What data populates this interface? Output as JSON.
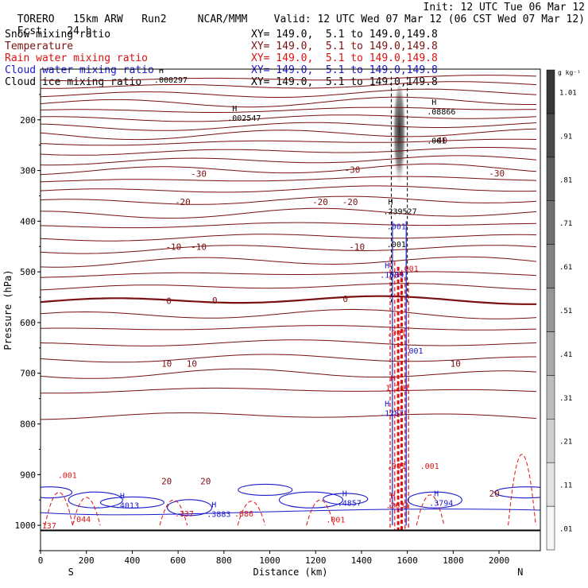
{
  "header": {
    "model": "TORERO",
    "resolution": "15km ARW",
    "run": "Run2",
    "center": "NCAR/MMM",
    "init": "Init: 12 UTC Tue 06 Mar 12",
    "fcst_label": "Fcst:",
    "fcst_hours": "24 h",
    "valid": "Valid: 12 UTC Wed 07 Mar 12 (06 CST Wed 07 Mar 12)"
  },
  "legend": [
    {
      "name": "Snow mixing ratio",
      "xy": "XY= 149.0,  5.1 to 149.0,149.8",
      "color": "#000000",
      "cls": "black"
    },
    {
      "name": "Temperature",
      "xy": "XY= 149.0,  5.1 to 149.0,149.8",
      "color": "#7a1010",
      "cls": "brown"
    },
    {
      "name": "Rain water mixing ratio",
      "xy": "XY= 149.0,  5.1 to 149.0,149.8",
      "color": "#dd1111",
      "cls": "red"
    },
    {
      "name": "Cloud water mixing ratio",
      "xy": "XY= 149.0,  5.1 to 149.0,149.8",
      "color": "#1a1acc",
      "cls": "blue"
    },
    {
      "name": "Cloud ice mixing ratio",
      "xy": "XY= 149.0,  5.1 to 149.0,149.8",
      "color": "#000000",
      "cls": "black"
    }
  ],
  "colorbar": {
    "unit": "g kg⁻¹",
    "labels": [
      ".01",
      ".11",
      ".21",
      ".31",
      ".41",
      ".51",
      ".61",
      ".71",
      ".81",
      ".91",
      "1.01"
    ]
  },
  "chart_data": {
    "type": "cross-section contour",
    "title": "Vertical cross section along XY= 149.0, 5.1 to 149.0, 149.8",
    "xlabel": "Distance (km)",
    "ylabel": "Pressure (hPa)",
    "xlim": [
      0,
      2180
    ],
    "ylim": [
      1050,
      100
    ],
    "x_ticks": [
      0,
      200,
      400,
      600,
      800,
      1000,
      1200,
      1400,
      1600,
      1800,
      2000
    ],
    "y_ticks": [
      200,
      300,
      400,
      500,
      600,
      700,
      800,
      900,
      1000
    ],
    "x_ends": [
      "S",
      "N"
    ],
    "temperature_isotherms": [
      {
        "value": -10,
        "pressure": 118
      },
      {
        "value": -10,
        "pressure": 132
      },
      {
        "value": -20,
        "pressure": 148
      },
      {
        "value": -30,
        "pressure": 165
      },
      {
        "value": -40,
        "pressure": 180
      },
      {
        "value": -40,
        "pressure": 196
      },
      {
        "value": -40,
        "pressure": 212
      },
      {
        "value": -40,
        "pressure": 228
      },
      {
        "value": -40,
        "pressure": 244
      },
      {
        "value": -30,
        "pressure": 262
      },
      {
        "value": -30,
        "pressure": 280
      },
      {
        "value": -30,
        "pressure": 298
      },
      {
        "value": -30,
        "pressure": 318
      },
      {
        "value": -30,
        "pressure": 338
      },
      {
        "value": -20,
        "pressure": 360
      },
      {
        "value": -20,
        "pressure": 385
      },
      {
        "value": -20,
        "pressure": 408
      },
      {
        "value": -10,
        "pressure": 432
      },
      {
        "value": -10,
        "pressure": 455
      },
      {
        "value": -10,
        "pressure": 480
      },
      {
        "value": -10,
        "pressure": 505
      },
      {
        "value": -10,
        "pressure": 530
      },
      {
        "value": 0,
        "pressure": 557
      },
      {
        "value": 0,
        "pressure": 585
      },
      {
        "value": 10,
        "pressure": 612
      },
      {
        "value": 10,
        "pressure": 642
      },
      {
        "value": 10,
        "pressure": 672
      },
      {
        "value": 10,
        "pressure": 702
      },
      {
        "value": 10,
        "pressure": 735
      },
      {
        "value": 20,
        "pressure": 785
      }
    ],
    "isotherm_labels": [
      {
        "text": "-30",
        "x": 690,
        "p": 306
      },
      {
        "text": "-30",
        "x": 1360,
        "p": 298
      },
      {
        "text": "-30",
        "x": 1990,
        "p": 305
      },
      {
        "text": "-40",
        "x": 1740,
        "p": 240
      },
      {
        "text": "-20",
        "x": 620,
        "p": 362
      },
      {
        "text": "-20",
        "x": 1220,
        "p": 362
      },
      {
        "text": "-20",
        "x": 1350,
        "p": 362
      },
      {
        "text": "-10",
        "x": 580,
        "p": 450
      },
      {
        "text": "-10",
        "x": 690,
        "p": 450
      },
      {
        "text": "-10",
        "x": 1380,
        "p": 450
      },
      {
        "text": "0",
        "x": 560,
        "p": 557
      },
      {
        "text": "0",
        "x": 760,
        "p": 556
      },
      {
        "text": "0",
        "x": 1330,
        "p": 553
      },
      {
        "text": "10",
        "x": 550,
        "p": 681
      },
      {
        "text": "10",
        "x": 660,
        "p": 681
      },
      {
        "text": "10",
        "x": 1810,
        "p": 681
      },
      {
        "text": "20",
        "x": 550,
        "p": 913
      },
      {
        "text": "20",
        "x": 720,
        "p": 913
      },
      {
        "text": "20",
        "x": 1980,
        "p": 937
      }
    ],
    "extrema_labels": [
      {
        "kind": "H",
        "value": ".000297",
        "x": 530,
        "p": 120,
        "color": "#000000"
      },
      {
        "kind": "H",
        "value": ".002547",
        "x": 850,
        "p": 196,
        "color": "#000000"
      },
      {
        "kind": "H",
        "value": ".08866",
        "x": 1720,
        "p": 183,
        "color": "#000000"
      },
      {
        "kind": "",
        "value": ".001",
        "x": 1720,
        "p": 240,
        "color": "#000000"
      },
      {
        "kind": "H",
        "value": ".239527",
        "x": 1530,
        "p": 380,
        "color": "#000000"
      },
      {
        "kind": "",
        "value": ".001",
        "x": 1545,
        "p": 410,
        "color": "#1a1acc"
      },
      {
        "kind": "",
        "value": ".001",
        "x": 1545,
        "p": 445,
        "color": "#000000"
      },
      {
        "kind": "",
        "value": ".001",
        "x": 1600,
        "p": 493,
        "color": "#dd1111"
      },
      {
        "kind": "H",
        "value": ".1089",
        "x": 1515,
        "p": 505,
        "color": "#1a1acc"
      },
      {
        "kind": "",
        "value": ".001",
        "x": 1545,
        "p": 620,
        "color": "#dd1111"
      },
      {
        "kind": "",
        "value": ".001",
        "x": 1620,
        "p": 655,
        "color": "#1a1acc"
      },
      {
        "kind": "H",
        "value": "1.201",
        "x": 1540,
        "p": 728,
        "color": "#dd1111"
      },
      {
        "kind": "H",
        "value": ".1287",
        "x": 1515,
        "p": 778,
        "color": "#1a1acc"
      },
      {
        "kind": "",
        "value": ".001",
        "x": 1545,
        "p": 882,
        "color": "#dd1111"
      },
      {
        "kind": "",
        "value": ".001",
        "x": 1690,
        "p": 882,
        "color": "#dd1111"
      },
      {
        "kind": "H",
        "value": ".4013",
        "x": 360,
        "p": 960,
        "color": "#1a1acc"
      },
      {
        "kind": "H",
        "value": ".3883",
        "x": 760,
        "p": 977,
        "color": "#1a1acc"
      },
      {
        "kind": "H",
        "value": ".4857",
        "x": 1330,
        "p": 955,
        "color": "#1a1acc"
      },
      {
        "kind": "H",
        "value": ".3794",
        "x": 1730,
        "p": 955,
        "color": "#1a1acc"
      },
      {
        "kind": "H",
        "value": ".2631",
        "x": 1540,
        "p": 960,
        "color": "#dd1111"
      },
      {
        "kind": "",
        "value": ".044",
        "x": 170,
        "p": 987,
        "color": "#dd1111"
      },
      {
        "kind": "",
        "value": ".001",
        "x": 110,
        "p": 900,
        "color": "#dd1111"
      },
      {
        "kind": "",
        "value": ".001",
        "x": 1280,
        "p": 988,
        "color": "#dd1111"
      },
      {
        "kind": "",
        "value": ".137",
        "x": 20,
        "p": 1000,
        "color": "#dd1111"
      },
      {
        "kind": "",
        "value": ".137",
        "x": 620,
        "p": 976,
        "color": "#dd1111"
      },
      {
        "kind": "",
        "value": ".086",
        "x": 880,
        "p": 976,
        "color": "#dd1111"
      }
    ]
  }
}
